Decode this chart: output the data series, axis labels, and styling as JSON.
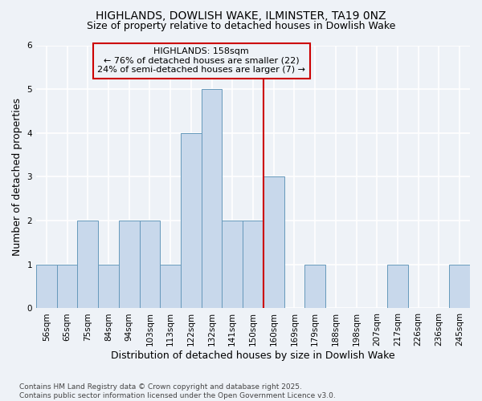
{
  "title1": "HIGHLANDS, DOWLISH WAKE, ILMINSTER, TA19 0NZ",
  "title2": "Size of property relative to detached houses in Dowlish Wake",
  "xlabel": "Distribution of detached houses by size in Dowlish Wake",
  "ylabel": "Number of detached properties",
  "footnote": "Contains HM Land Registry data © Crown copyright and database right 2025.\nContains public sector information licensed under the Open Government Licence v3.0.",
  "bin_labels": [
    "56sqm",
    "65sqm",
    "75sqm",
    "84sqm",
    "94sqm",
    "103sqm",
    "113sqm",
    "122sqm",
    "132sqm",
    "141sqm",
    "150sqm",
    "160sqm",
    "169sqm",
    "179sqm",
    "188sqm",
    "198sqm",
    "207sqm",
    "217sqm",
    "226sqm",
    "236sqm",
    "245sqm"
  ],
  "values": [
    1,
    1,
    2,
    1,
    2,
    2,
    1,
    4,
    5,
    2,
    2,
    3,
    0,
    1,
    0,
    0,
    0,
    1,
    0,
    0,
    1
  ],
  "bar_color": "#c8d8eb",
  "bar_edge_color": "#6699bb",
  "vline_index": 10.5,
  "annotation_text_line1": "HIGHLANDS: 158sqm",
  "annotation_text_line2": "← 76% of detached houses are smaller (22)",
  "annotation_text_line3": "24% of semi-detached houses are larger (7) →",
  "vline_color": "#cc0000",
  "annotation_box_edgecolor": "#cc0000",
  "ylim_max": 6,
  "yticks": [
    0,
    1,
    2,
    3,
    4,
    5,
    6
  ],
  "background_color": "#eef2f7",
  "grid_color": "#ffffff",
  "title_fontsize": 10,
  "subtitle_fontsize": 9,
  "annotation_fontsize": 8,
  "axis_label_fontsize": 9,
  "tick_fontsize": 7.5,
  "footnote_fontsize": 6.5
}
